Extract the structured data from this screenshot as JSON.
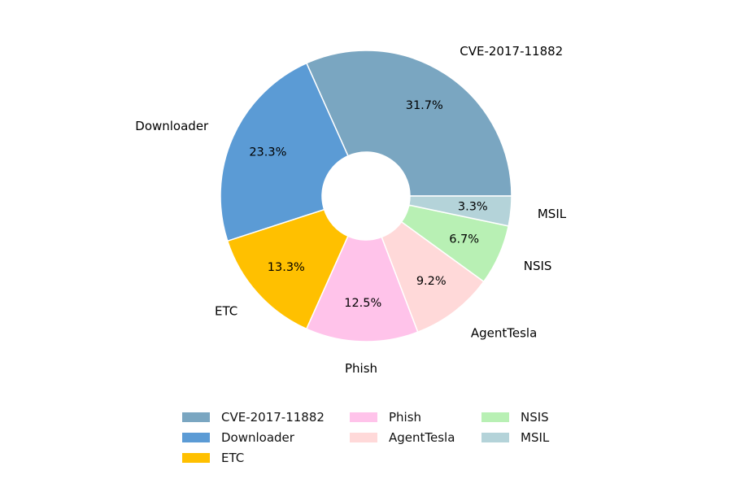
{
  "chart_data": {
    "type": "pie",
    "donut": true,
    "start_angle": 0,
    "direction": "counterclockwise",
    "legend_position": "bottom-center",
    "slices": [
      {
        "label": "CVE-2017-11882",
        "value": 31.7,
        "pct_label": "31.7%",
        "color": "#7aa6c1"
      },
      {
        "label": "Downloader",
        "value": 23.3,
        "pct_label": "23.3%",
        "color": "#5b9bd5"
      },
      {
        "label": "ETC",
        "value": 13.3,
        "pct_label": "13.3%",
        "color": "#ffc000"
      },
      {
        "label": "Phish",
        "value": 12.5,
        "pct_label": "12.5%",
        "color": "#ffc3ea"
      },
      {
        "label": "AgentTesla",
        "value": 9.2,
        "pct_label": "9.2%",
        "color": "#ffd9d9"
      },
      {
        "label": "NSIS",
        "value": 6.7,
        "pct_label": "6.7%",
        "color": "#b8f0b4"
      },
      {
        "label": "MSIL",
        "value": 3.3,
        "pct_label": "3.3%",
        "color": "#b4d3d9"
      }
    ]
  }
}
